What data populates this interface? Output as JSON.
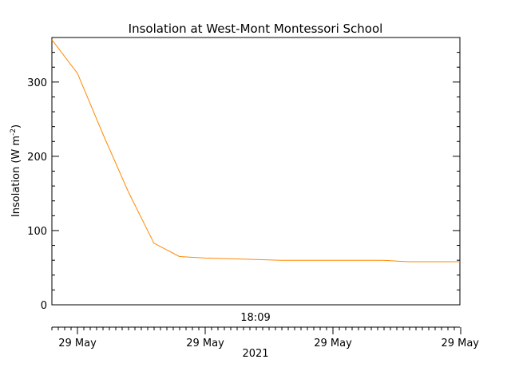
{
  "chart_data": {
    "type": "line",
    "title": "Insolation at West-Mont Montessori School",
    "ylabel": "Insolation (W m",
    "ylabel_exponent": "-2",
    "ylabel_close": ")",
    "ylim": [
      0,
      360
    ],
    "yticks": [
      0,
      100,
      200,
      300
    ],
    "ytick_labels": [
      "0",
      "100",
      "200",
      "300"
    ],
    "time_label": "18:09",
    "date_ticks": [
      "29 May",
      "29 May",
      "29 May",
      "29 May"
    ],
    "year_label": "2021",
    "grid": false,
    "series": [
      {
        "color": "#ff8800",
        "x": [
          0,
          1,
          2,
          3,
          4,
          5,
          6,
          7,
          8,
          9,
          10,
          11,
          12,
          13,
          14,
          15,
          16
        ],
        "y": [
          357,
          312,
          230,
          152,
          83,
          65,
          63,
          62,
          61,
          60,
          60,
          60,
          60,
          60,
          58,
          58,
          58
        ]
      }
    ]
  }
}
